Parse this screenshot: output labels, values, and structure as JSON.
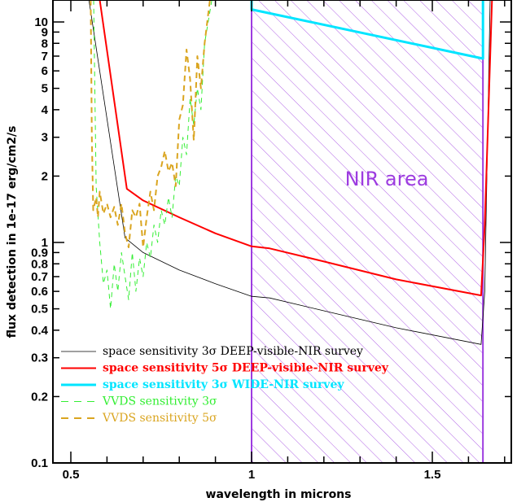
{
  "chart_data": {
    "type": "line",
    "title": "",
    "xlabel": "wavelength in microns",
    "ylabel": "flux detection in 1e-17 erg/cm2/s",
    "xlim": [
      0.45,
      1.72
    ],
    "ylim": [
      0.1,
      12.6
    ],
    "yscale": "log",
    "x_ticks": [
      0.5,
      1,
      1.5
    ],
    "x_tick_labels": [
      "0.5",
      "1",
      "1.5"
    ],
    "y_ticks": [
      0.1,
      0.2,
      0.3,
      0.4,
      0.5,
      0.6,
      0.7,
      0.8,
      0.9,
      1,
      2,
      3,
      4,
      5,
      6,
      7,
      8,
      9,
      10
    ],
    "y_tick_labels": [
      "0.1",
      "0.2",
      "0.3",
      "0.4",
      "0.5",
      "0.6",
      "0.7",
      "0.8",
      "0.9",
      "1",
      "2",
      "3",
      "4",
      "5",
      "6",
      "7",
      "8",
      "9",
      "10"
    ],
    "annotation": {
      "text": "NIR area",
      "x_range": [
        1.0,
        1.64
      ],
      "color": "#9d3ce0"
    },
    "legend_position": "bottom-left",
    "series": [
      {
        "name": "space sensitivity 3σ DEEP-visible-NIR survey",
        "color": "#000000",
        "style": "solid",
        "width": 0.8,
        "bold": false,
        "x": [
          0.55,
          0.65,
          0.7,
          0.8,
          0.9,
          1.0,
          1.05,
          1.2,
          1.4,
          1.635,
          1.645,
          1.66
        ],
        "y": [
          12.6,
          1.05,
          0.9,
          0.75,
          0.65,
          0.57,
          0.56,
          0.49,
          0.41,
          0.345,
          0.6,
          12.6
        ]
      },
      {
        "name": "space sensitivity 5σ DEEP-visible-NIR survey",
        "color": "#ff0000",
        "style": "solid",
        "width": 2,
        "bold": true,
        "x": [
          0.58,
          0.655,
          0.7,
          0.8,
          0.9,
          1.0,
          1.05,
          1.2,
          1.4,
          1.635,
          1.645,
          1.665
        ],
        "y": [
          12.6,
          1.75,
          1.55,
          1.3,
          1.1,
          0.96,
          0.94,
          0.82,
          0.68,
          0.575,
          1.2,
          12.6
        ]
      },
      {
        "name": "space sensitivity 3σ WIDE-NIR survey",
        "color": "#00e5ff",
        "style": "solid",
        "width": 3,
        "bold": true,
        "x": [
          1.0,
          1.0,
          1.64,
          1.64
        ],
        "y": [
          12.6,
          11.4,
          6.82,
          12.6
        ]
      },
      {
        "name": "VVDS sensitivity 3σ",
        "color": "#33ee33",
        "style": "dashed",
        "width": 1,
        "bold": false,
        "x": [
          0.563,
          0.57,
          0.58,
          0.59,
          0.6,
          0.61,
          0.62,
          0.63,
          0.64,
          0.65,
          0.66,
          0.67,
          0.68,
          0.69,
          0.7,
          0.71,
          0.72,
          0.73,
          0.74,
          0.75,
          0.76,
          0.77,
          0.78,
          0.79,
          0.8,
          0.81,
          0.82,
          0.83,
          0.84,
          0.85,
          0.86,
          0.87,
          0.89
        ],
        "y": [
          12.6,
          1.8,
          1.0,
          0.65,
          0.75,
          0.5,
          0.8,
          0.6,
          0.9,
          0.7,
          0.55,
          0.9,
          0.6,
          0.85,
          0.7,
          1.0,
          0.85,
          1.2,
          1.0,
          1.4,
          1.2,
          1.6,
          1.3,
          2.0,
          1.8,
          3.0,
          2.5,
          4.5,
          3.4,
          5.0,
          4.0,
          8.0,
          12.6
        ]
      },
      {
        "name": "VVDS sensitivity 5σ",
        "color": "#daa520",
        "style": "dashed",
        "width": 2,
        "bold": false,
        "x": [
          0.555,
          0.558,
          0.562,
          0.57,
          0.575,
          0.58,
          0.59,
          0.6,
          0.61,
          0.62,
          0.63,
          0.64,
          0.65,
          0.66,
          0.67,
          0.68,
          0.69,
          0.7,
          0.71,
          0.72,
          0.73,
          0.74,
          0.75,
          0.76,
          0.77,
          0.78,
          0.79,
          0.8,
          0.81,
          0.82,
          0.83,
          0.84,
          0.85,
          0.86,
          0.87,
          0.885
        ],
        "y": [
          12.6,
          3.0,
          1.4,
          1.6,
          1.3,
          1.7,
          1.35,
          1.5,
          1.3,
          1.45,
          1.2,
          1.5,
          1.1,
          0.95,
          1.4,
          1.3,
          1.5,
          0.95,
          1.3,
          1.7,
          1.4,
          2.0,
          2.2,
          2.6,
          2.1,
          2.3,
          1.8,
          3.6,
          4.2,
          7.5,
          5.5,
          2.9,
          7.0,
          5.0,
          8.0,
          12.6
        ]
      }
    ]
  }
}
